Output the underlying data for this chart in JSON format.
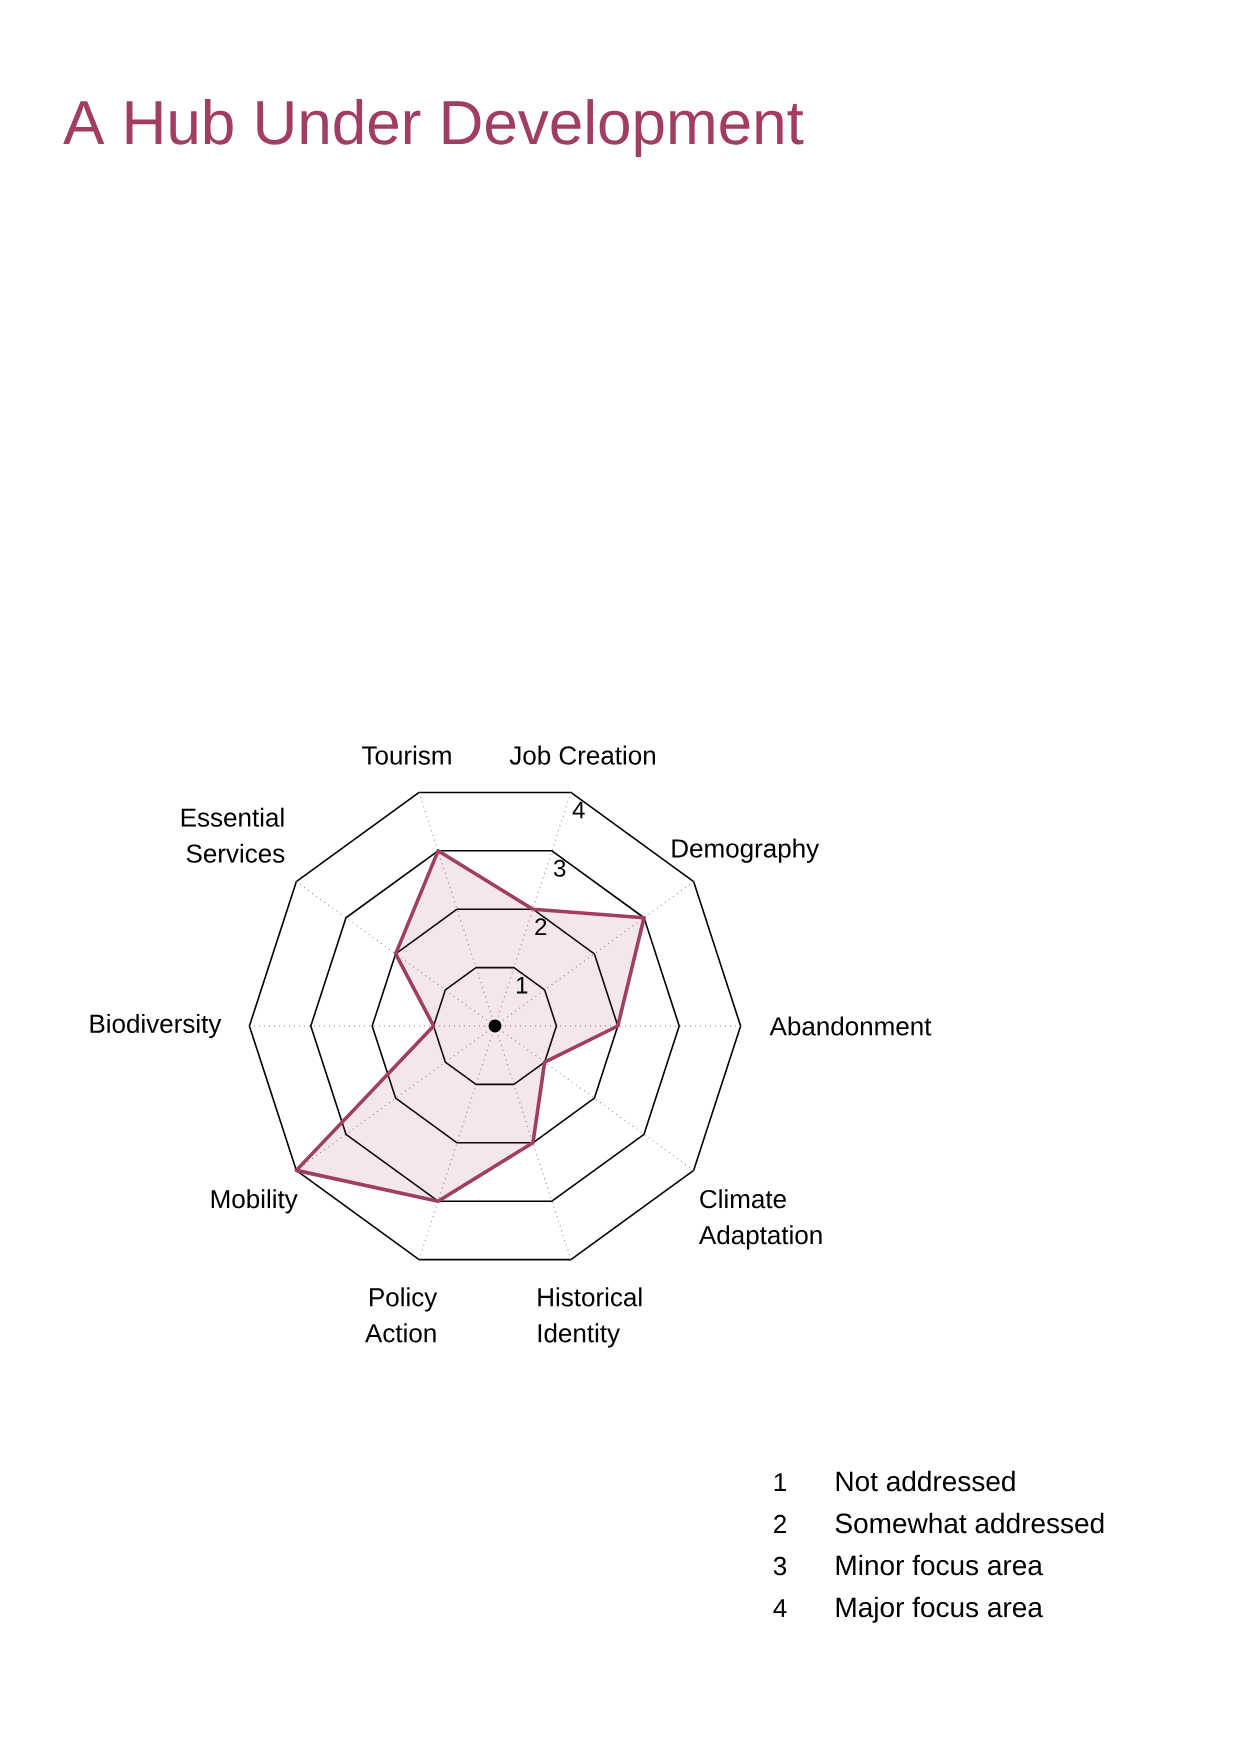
{
  "chart_data": {
    "type": "radar",
    "title": "A Hub Under Development",
    "categories": [
      "Job Creation",
      "Demography",
      "Abandonment",
      "Climate Adaptation",
      "Historical Identity",
      "Policy Action",
      "Mobility",
      "Biodiversity",
      "Essential Services",
      "Tourism"
    ],
    "series": [
      {
        "color": "#a13d63",
        "values": [
          2,
          3,
          2,
          1,
          2,
          3,
          4,
          1,
          2,
          3
        ]
      }
    ],
    "ylim": [
      0,
      4
    ],
    "yticks": [
      1,
      2,
      3,
      4
    ],
    "grid": true,
    "annotations": [
      "1",
      "Not addressed",
      "2",
      "Somewhat addressed",
      "3",
      "Minor focus area",
      "4",
      "Major focus area"
    ]
  }
}
